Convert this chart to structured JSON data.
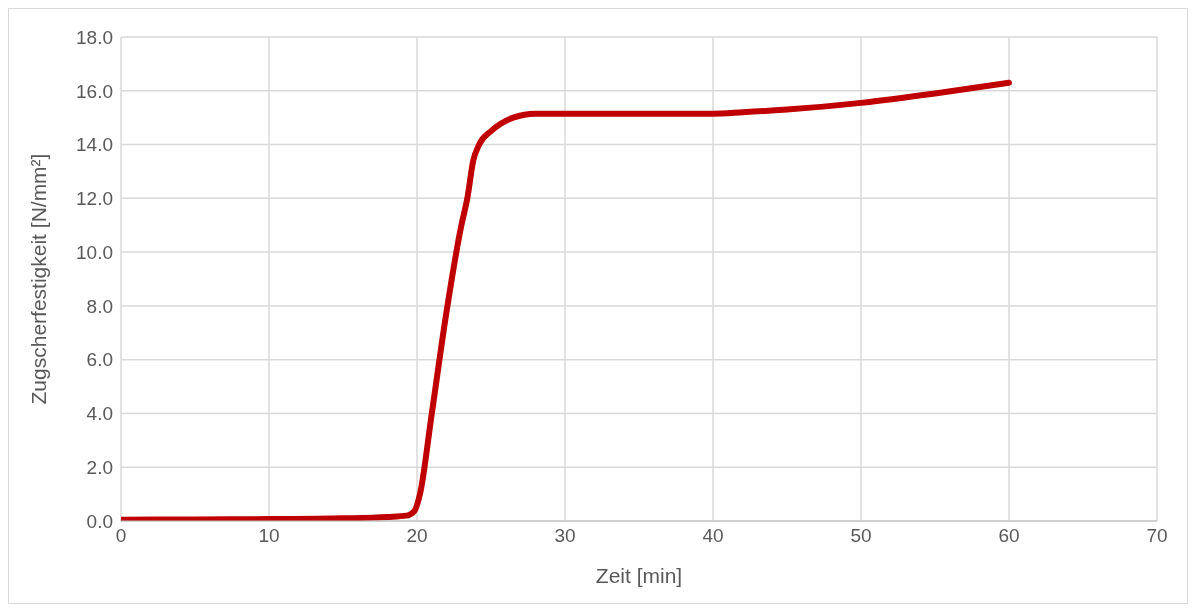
{
  "chart_data": {
    "type": "line",
    "xlabel": "Zeit [min]",
    "ylabel": "Zugscherfestigkeit [N/mm²]",
    "x": [
      0,
      5,
      10,
      15,
      18,
      19.3,
      19.8,
      20.2,
      21,
      22,
      23,
      23.4,
      23.8,
      24.2,
      25,
      26.5,
      28,
      30,
      35,
      40,
      42,
      45,
      50,
      55,
      60
    ],
    "series": [
      {
        "color": "#c00000",
        "values": [
          0.05,
          0.06,
          0.07,
          0.1,
          0.15,
          0.2,
          0.35,
          1.0,
          4.0,
          7.8,
          11.0,
          12.0,
          13.4,
          14.0,
          14.5,
          15.0,
          15.15,
          15.15,
          15.15,
          15.15,
          15.2,
          15.3,
          15.55,
          15.9,
          16.3
        ]
      }
    ],
    "xlim": [
      0,
      70
    ],
    "xticks": [
      0,
      10,
      20,
      30,
      40,
      50,
      60,
      70
    ],
    "ylim": [
      0,
      18
    ],
    "yticks": [
      {
        "value": 0,
        "label": "0.0"
      },
      {
        "value": 2,
        "label": "2.0"
      },
      {
        "value": 4,
        "label": "4.0"
      },
      {
        "value": 6,
        "label": "6.0"
      },
      {
        "value": 8,
        "label": "8.0"
      },
      {
        "value": 10,
        "label": "10.0"
      },
      {
        "value": 12,
        "label": "12.0"
      },
      {
        "value": 14,
        "label": "14.0"
      },
      {
        "value": 16,
        "label": "16.0"
      },
      {
        "value": 18,
        "label": "18.0"
      }
    ],
    "grid": true,
    "marker": "none",
    "line_style": "solid"
  }
}
